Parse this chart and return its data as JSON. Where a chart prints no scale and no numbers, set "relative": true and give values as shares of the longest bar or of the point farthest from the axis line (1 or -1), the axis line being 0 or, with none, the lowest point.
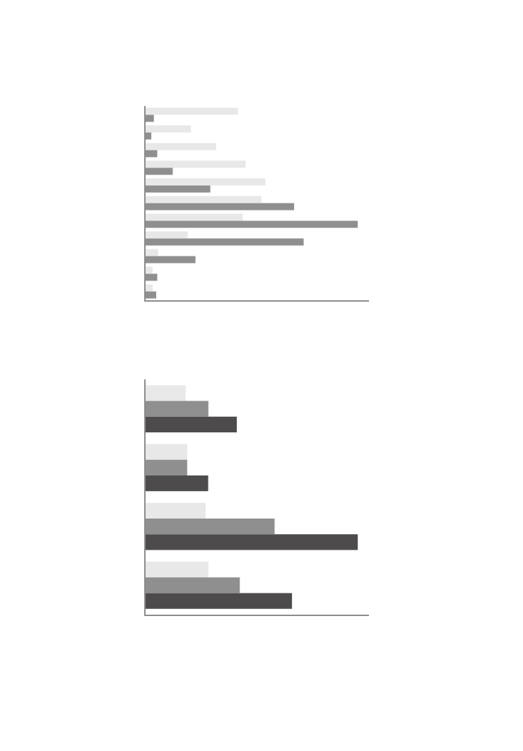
{
  "chart_data": [
    {
      "type": "bar",
      "orientation": "horizontal",
      "relative": true,
      "categories": [
        null,
        null,
        null,
        null,
        null,
        null,
        null,
        null,
        null,
        null,
        null
      ],
      "series": [
        {
          "color": "#e8e8e8",
          "values": [
            0.435,
            0.214,
            0.332,
            0.471,
            0.565,
            0.546,
            0.458,
            0.199,
            0.059,
            0.033,
            0.033
          ]
        },
        {
          "color": "#8f8f8f",
          "values": [
            0.039,
            0.027,
            0.055,
            0.128,
            0.305,
            0.7,
            1,
            0.745,
            0.235,
            0.055,
            0.05
          ]
        }
      ]
    },
    {
      "type": "bar",
      "orientation": "horizontal",
      "relative": true,
      "categories": [
        null,
        null,
        null,
        null
      ],
      "series": [
        {
          "color": "#e8e8e8",
          "values": [
            0.189,
            0.196,
            0.283,
            0.296
          ]
        },
        {
          "color": "#8f8f8f",
          "values": [
            0.296,
            0.196,
            0.608,
            0.444
          ]
        },
        {
          "color": "#4d4b4c",
          "values": [
            0.43,
            0.295,
            1,
            0.69
          ]
        }
      ]
    }
  ]
}
